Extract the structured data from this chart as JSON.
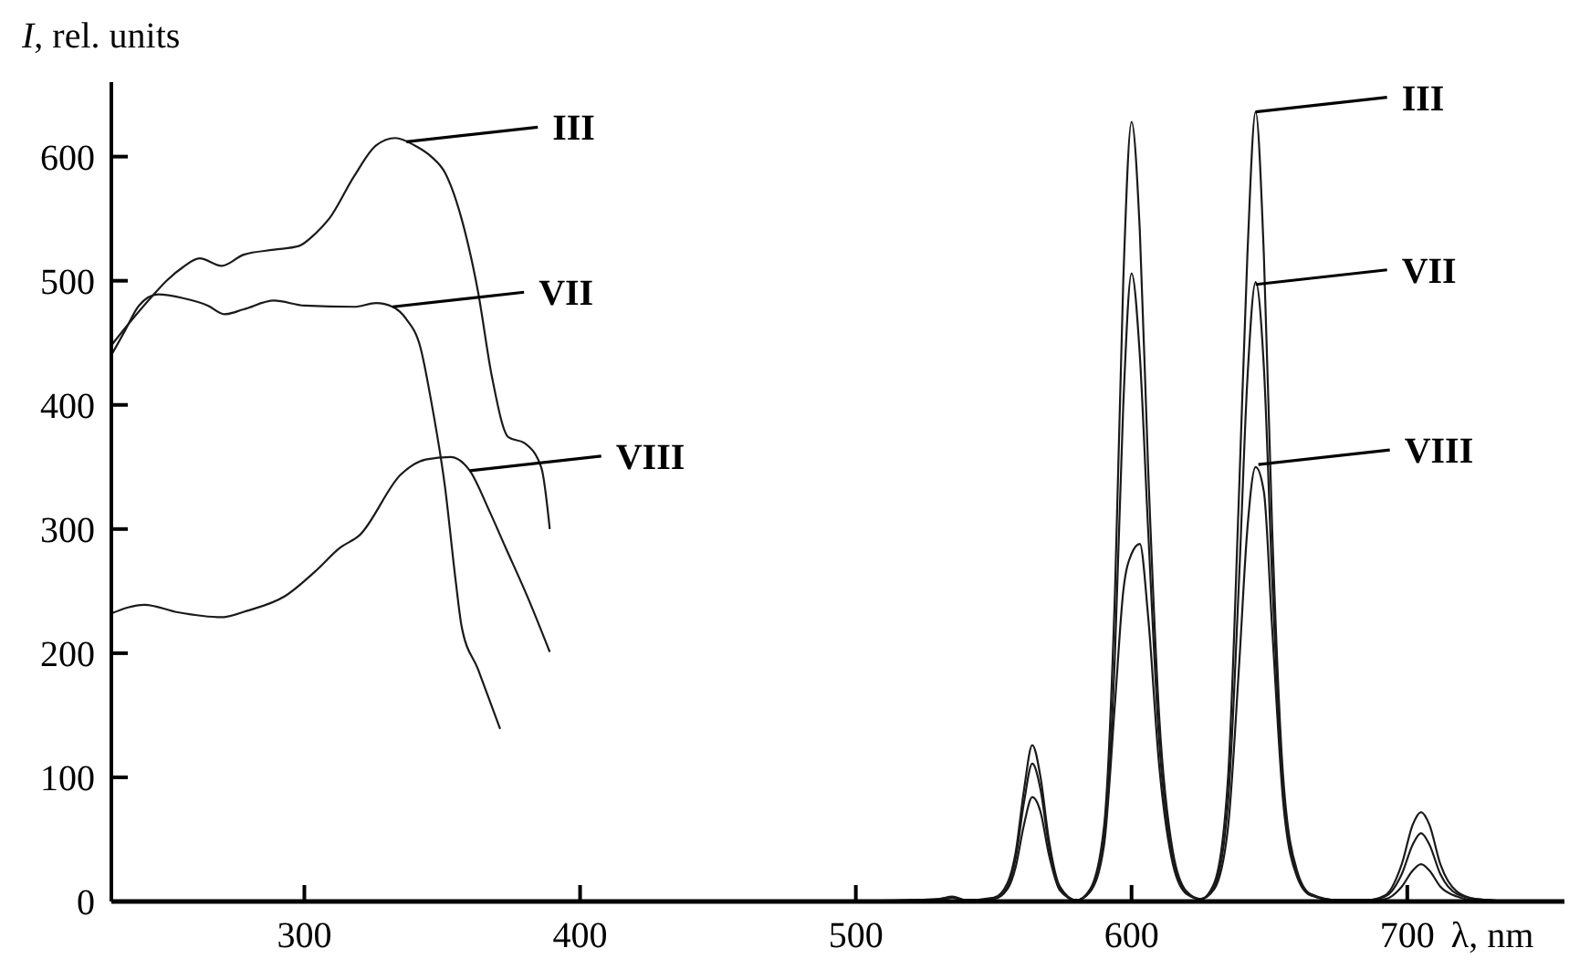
{
  "chart_data": {
    "type": "line",
    "xlabel": "λ, nm",
    "ylabel": "I, rel. units",
    "xlim": [
      230,
      757
    ],
    "xticks": [
      300,
      400,
      500,
      600,
      700
    ],
    "ylim": [
      0,
      660
    ],
    "yticks": [
      0,
      100,
      200,
      300,
      400,
      500,
      600
    ],
    "grid": false,
    "marker": "none",
    "line_style": "solid",
    "series": [
      {
        "color": "#1a1a1a",
        "x": [
          230,
          238,
          245,
          250,
          256,
          262,
          270,
          278,
          289,
          298,
          304,
          309,
          318,
          326,
          333,
          340,
          346,
          351,
          357,
          363,
          368,
          374,
          380,
          386,
          389
        ],
        "values": [
          448,
          470,
          488,
          500,
          511,
          518,
          512,
          521,
          525,
          528,
          538,
          550,
          584,
          609,
          615,
          609,
          600,
          587,
          550,
          491,
          423,
          374,
          369,
          349,
          300
        ]
      },
      {
        "color": "#1a1a1a",
        "x": [
          230,
          235,
          240,
          247,
          256,
          265,
          271,
          278,
          289,
          300,
          318,
          326,
          332,
          337,
          342,
          346,
          351,
          355,
          357,
          363,
          371
        ],
        "values": [
          440,
          460,
          480,
          489,
          486,
          480,
          473,
          477,
          484,
          480,
          479,
          482,
          479,
          469,
          447,
          403,
          334,
          256,
          222,
          187,
          139
        ]
      },
      {
        "color": "#1a1a1a",
        "x": [
          230,
          242,
          254,
          270,
          279,
          293,
          304,
          313,
          320,
          335,
          344,
          353,
          360,
          367,
          373,
          381,
          389
        ],
        "values": [
          232,
          239,
          233,
          229,
          234,
          246,
          266,
          285,
          295,
          344,
          356,
          358,
          347,
          315,
          285,
          245,
          201
        ]
      },
      {
        "color": "#1a1a1a",
        "x": [
          500,
          520,
          530,
          535,
          540,
          550,
          555,
          558,
          561,
          564,
          567,
          570,
          574,
          580,
          585,
          590,
          594,
          597,
          600,
          603,
          606,
          610,
          615,
          620,
          625,
          630,
          635,
          639,
          642,
          645,
          648,
          651,
          655,
          660,
          665,
          675,
          685,
          692,
          698,
          702,
          705,
          708,
          712,
          718,
          725,
          740
        ],
        "values": [
          0,
          1,
          2,
          4,
          1,
          3,
          15,
          40,
          90,
          126,
          100,
          50,
          12,
          1,
          10,
          60,
          250,
          500,
          628,
          540,
          350,
          150,
          40,
          8,
          2,
          15,
          100,
          330,
          520,
          636,
          520,
          300,
          100,
          25,
          6,
          1,
          1,
          5,
          30,
          62,
          72,
          62,
          30,
          8,
          2,
          0
        ]
      },
      {
        "color": "#1a1a1a",
        "x": [
          500,
          520,
          530,
          535,
          540,
          550,
          555,
          558,
          561,
          564,
          567,
          570,
          574,
          580,
          585,
          590,
          594,
          597,
          600,
          603,
          606,
          610,
          615,
          620,
          625,
          630,
          635,
          639,
          642,
          645,
          648,
          651,
          655,
          660,
          665,
          675,
          685,
          692,
          698,
          702,
          705,
          708,
          712,
          718,
          725,
          740
        ],
        "values": [
          0,
          1,
          2,
          3,
          1,
          2,
          12,
          35,
          80,
          111,
          90,
          45,
          10,
          1,
          8,
          50,
          200,
          400,
          506,
          440,
          300,
          130,
          35,
          7,
          2,
          12,
          80,
          260,
          420,
          499,
          430,
          260,
          90,
          22,
          5,
          1,
          1,
          4,
          22,
          46,
          55,
          46,
          22,
          6,
          2,
          0
        ]
      },
      {
        "color": "#1a1a1a",
        "x": [
          500,
          520,
          530,
          535,
          540,
          550,
          555,
          558,
          561,
          564,
          567,
          570,
          574,
          580,
          585,
          590,
          594,
          597,
          600,
          603,
          606,
          610,
          615,
          620,
          625,
          630,
          635,
          639,
          642,
          645,
          648,
          651,
          655,
          660,
          665,
          675,
          685,
          692,
          698,
          702,
          705,
          708,
          712,
          718,
          725,
          740
        ],
        "values": [
          0,
          1,
          1,
          3,
          1,
          2,
          10,
          28,
          62,
          84,
          72,
          38,
          9,
          1,
          8,
          45,
          160,
          250,
          280,
          288,
          230,
          110,
          30,
          6,
          2,
          10,
          60,
          190,
          300,
          350,
          330,
          220,
          80,
          20,
          5,
          1,
          1,
          2,
          12,
          25,
          30,
          25,
          12,
          4,
          1,
          0
        ]
      }
    ],
    "annotations": [
      {
        "text": "III",
        "x": 337,
        "y": 612
      },
      {
        "text": "VII",
        "x": 332,
        "y": 479
      },
      {
        "text": "VIII",
        "x": 360,
        "y": 347
      },
      {
        "text": "III",
        "x": 645,
        "y": 636
      },
      {
        "text": "VII",
        "x": 645,
        "y": 497
      },
      {
        "text": "VIII",
        "x": 646,
        "y": 352
      }
    ]
  }
}
